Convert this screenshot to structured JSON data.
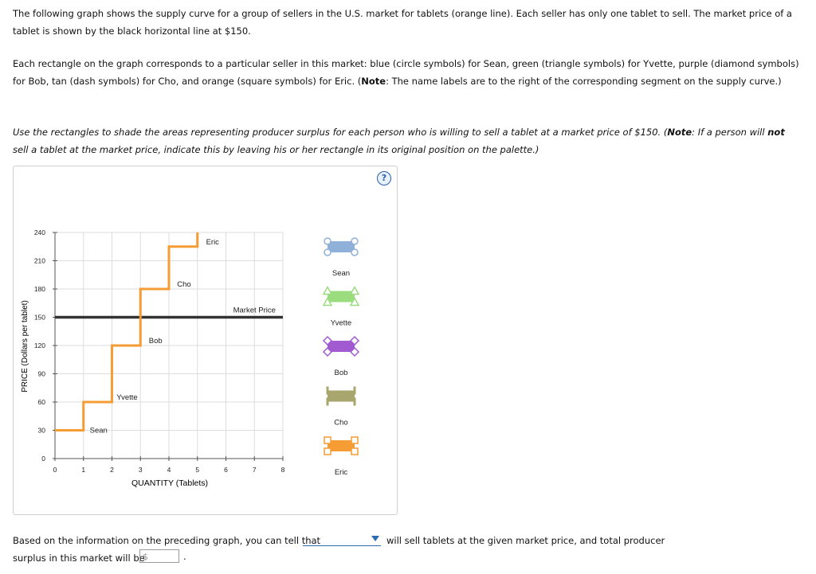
{
  "intro": {
    "p1": "The following graph shows the supply curve for a group of sellers in the U.S. market for tablets (orange line). Each seller has only one tablet to sell. The market price of a tablet is shown by the black horizontal line at $150.",
    "p2_a": "Each rectangle on the graph corresponds to a particular seller in this market: blue (circle symbols) for Sean, green (triangle symbols) for Yvette, purple (diamond symbols) for Bob, tan (dash symbols) for Cho, and orange (square symbols) for Eric. (",
    "p2_note": "Note",
    "p2_b": ": The name labels are to the right of the corresponding segment on the supply curve.)",
    "p3_a": "Use the rectangles to shade the areas representing producer surplus for each person who is willing to sell a tablet at a market price of $150. (",
    "p3_note": "Note",
    "p3_b": ": If a person will ",
    "p3_not": "not",
    "p3_c": " sell a tablet at the market price, indicate this by leaving his or her rectangle in its original position on the palette.)"
  },
  "help_label": "?",
  "chart_data": {
    "type": "line",
    "xlabel": "QUANTITY (Tablets)",
    "ylabel": "PRICE (Dollars per tablet)",
    "xlim": [
      0,
      8
    ],
    "ylim": [
      0,
      240
    ],
    "xticks": [
      0,
      1,
      2,
      3,
      4,
      5,
      6,
      7,
      8
    ],
    "yticks": [
      0,
      30,
      60,
      90,
      120,
      150,
      180,
      210,
      240
    ],
    "supply_steps": [
      {
        "seller": "Sean",
        "price": 30,
        "x": [
          0,
          1
        ]
      },
      {
        "seller": "Yvette",
        "price": 60,
        "x": [
          1,
          2
        ]
      },
      {
        "seller": "Bob",
        "price": 120,
        "x": [
          2,
          3
        ]
      },
      {
        "seller": "Cho",
        "price": 180,
        "x": [
          3,
          4
        ]
      },
      {
        "seller": "Eric",
        "price": 225,
        "x": [
          4,
          5
        ]
      }
    ],
    "supply_top": 240,
    "market_price": {
      "label": "Market Price",
      "value": 150
    },
    "colors": {
      "supply": "#f59c34",
      "market": "#333333",
      "grid": "#dddddd"
    }
  },
  "palette": [
    {
      "name": "Sean",
      "symbol": "circle",
      "color": "#8fb0d8"
    },
    {
      "name": "Yvette",
      "symbol": "triangle",
      "color": "#9bdc7e"
    },
    {
      "name": "Bob",
      "symbol": "diamond",
      "color": "#a15ad0"
    },
    {
      "name": "Cho",
      "symbol": "dash",
      "color": "#a8a66d"
    },
    {
      "name": "Eric",
      "symbol": "square",
      "color": "#f59c34"
    }
  ],
  "question": {
    "text_a": "Based on the information on the preceding graph, you can tell that",
    "dropdown_value": "",
    "text_b": "will sell tablets at the given market price, and total producer",
    "text_c": "surplus in this market will be",
    "currency": "$",
    "input_value": "",
    "period": "."
  }
}
